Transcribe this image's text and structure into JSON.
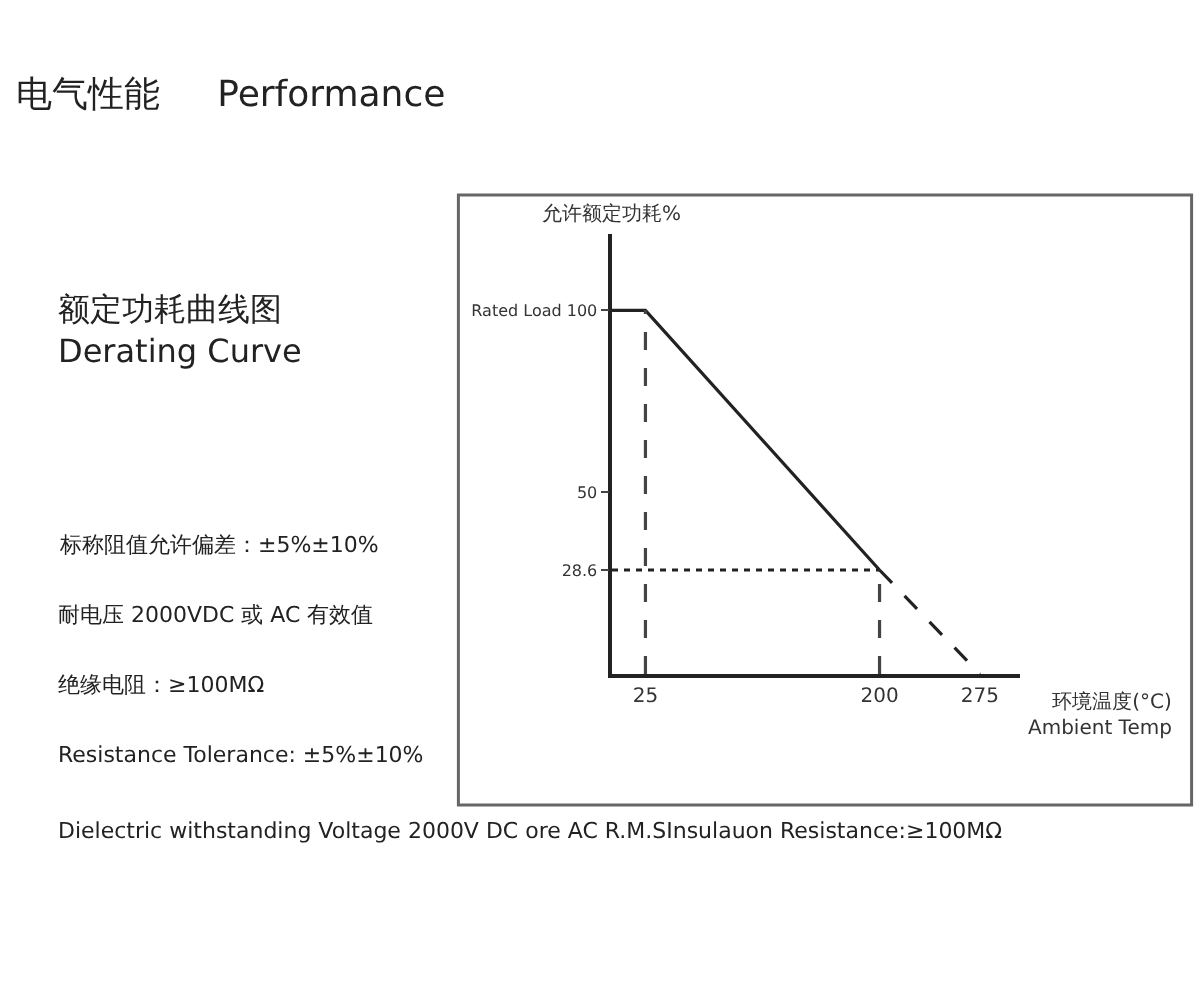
{
  "chart_data": {
    "type": "line",
    "title": "电气性能     Performance",
    "subtitle": "额定功耗曲线图\nDerating Curve",
    "xlabel": "环境温度(°C)\nAmbient Temp",
    "ylabel": "允许额定功耗%",
    "series": [
      {
        "x": [
          0,
          25,
          200
        ],
        "values": [
          100,
          100,
          28.6
        ],
        "color": "#222222",
        "line_style": "solid"
      },
      {
        "x": [
          200,
          275
        ],
        "values": [
          28.6,
          0
        ],
        "color": "#222222",
        "line_style": "dashed"
      },
      {
        "x": [
          25,
          25
        ],
        "values": [
          0,
          100
        ],
        "color": "#444444",
        "line_style": "dashed"
      },
      {
        "x": [
          200,
          200
        ],
        "values": [
          0,
          28.6
        ],
        "color": "#444444",
        "line_style": "dashed"
      },
      {
        "x": [
          0,
          200
        ],
        "values": [
          28.6,
          28.6
        ],
        "color": "#222222",
        "line_style": "dotted"
      }
    ],
    "xlim": [
      0,
      305
    ],
    "ylim": [
      0,
      121
    ],
    "xticks": [
      25,
      200,
      275
    ],
    "yticks": [
      28.6,
      50,
      {
        "value": 100,
        "label": "Rated Load 100"
      }
    ],
    "marker": "none",
    "annotations": [
      "标称阻值允许偏差：±5%±10%",
      "耐电压 2000VDC 或 AC 有效值",
      "绝缘电阻：≥100MΩ",
      "Resistance Tolerance: ±5%±10%",
      "Dielectric withstanding Voltage 2000V DC ore AC R.M.SInsulauon Resistance:≥100MΩ"
    ]
  }
}
